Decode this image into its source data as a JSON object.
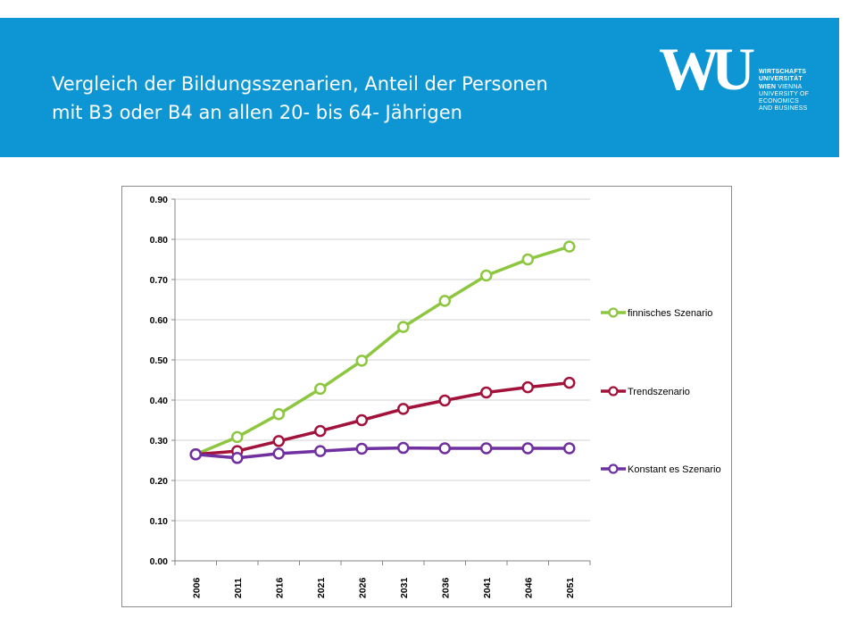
{
  "header": {
    "title_line1": "Vergleich der Bildungsszenarien, Anteil der Personen",
    "title_line2": "mit B3 oder B4 an allen 20- bis 64- Jährigen"
  },
  "logo": {
    "mark": "WU",
    "line1": "WIRTSCHAFTS",
    "line2": "UNIVERSITÄT",
    "line3_bold": "WIEN",
    "line3_rest": " VIENNA",
    "line4": "UNIVERSITY OF",
    "line5": "ECONOMICS",
    "line6": "AND BUSINESS"
  },
  "colors": {
    "banner": "#0d96d3",
    "finnisch": "#8dc63f",
    "trend": "#a3123a",
    "konstant": "#7030a0"
  },
  "chart_data": {
    "type": "line",
    "title": "",
    "xlabel": "",
    "ylabel": "",
    "categories": [
      "2006",
      "2011",
      "2016",
      "2021",
      "2026",
      "2031",
      "2036",
      "2041",
      "2046",
      "2051"
    ],
    "ylim": [
      0,
      0.9
    ],
    "yticks": [
      "0.00",
      "0.10",
      "0.20",
      "0.30",
      "0.40",
      "0.50",
      "0.60",
      "0.70",
      "0.80",
      "0.90"
    ],
    "grid": "horizontal",
    "legend_position": "right",
    "series": [
      {
        "name": "finnisches Szenario",
        "color": "#8dc63f",
        "values": [
          0.265,
          0.308,
          0.365,
          0.428,
          0.498,
          0.582,
          0.647,
          0.71,
          0.75,
          0.782
        ]
      },
      {
        "name": "Trendszenario",
        "color": "#a3123a",
        "values": [
          0.265,
          0.273,
          0.298,
          0.323,
          0.35,
          0.378,
          0.399,
          0.419,
          0.432,
          0.443
        ]
      },
      {
        "name": "Konstant es Szenario",
        "color": "#7030a0",
        "values": [
          0.265,
          0.256,
          0.267,
          0.273,
          0.279,
          0.281,
          0.28,
          0.28,
          0.28,
          0.28
        ]
      }
    ]
  }
}
